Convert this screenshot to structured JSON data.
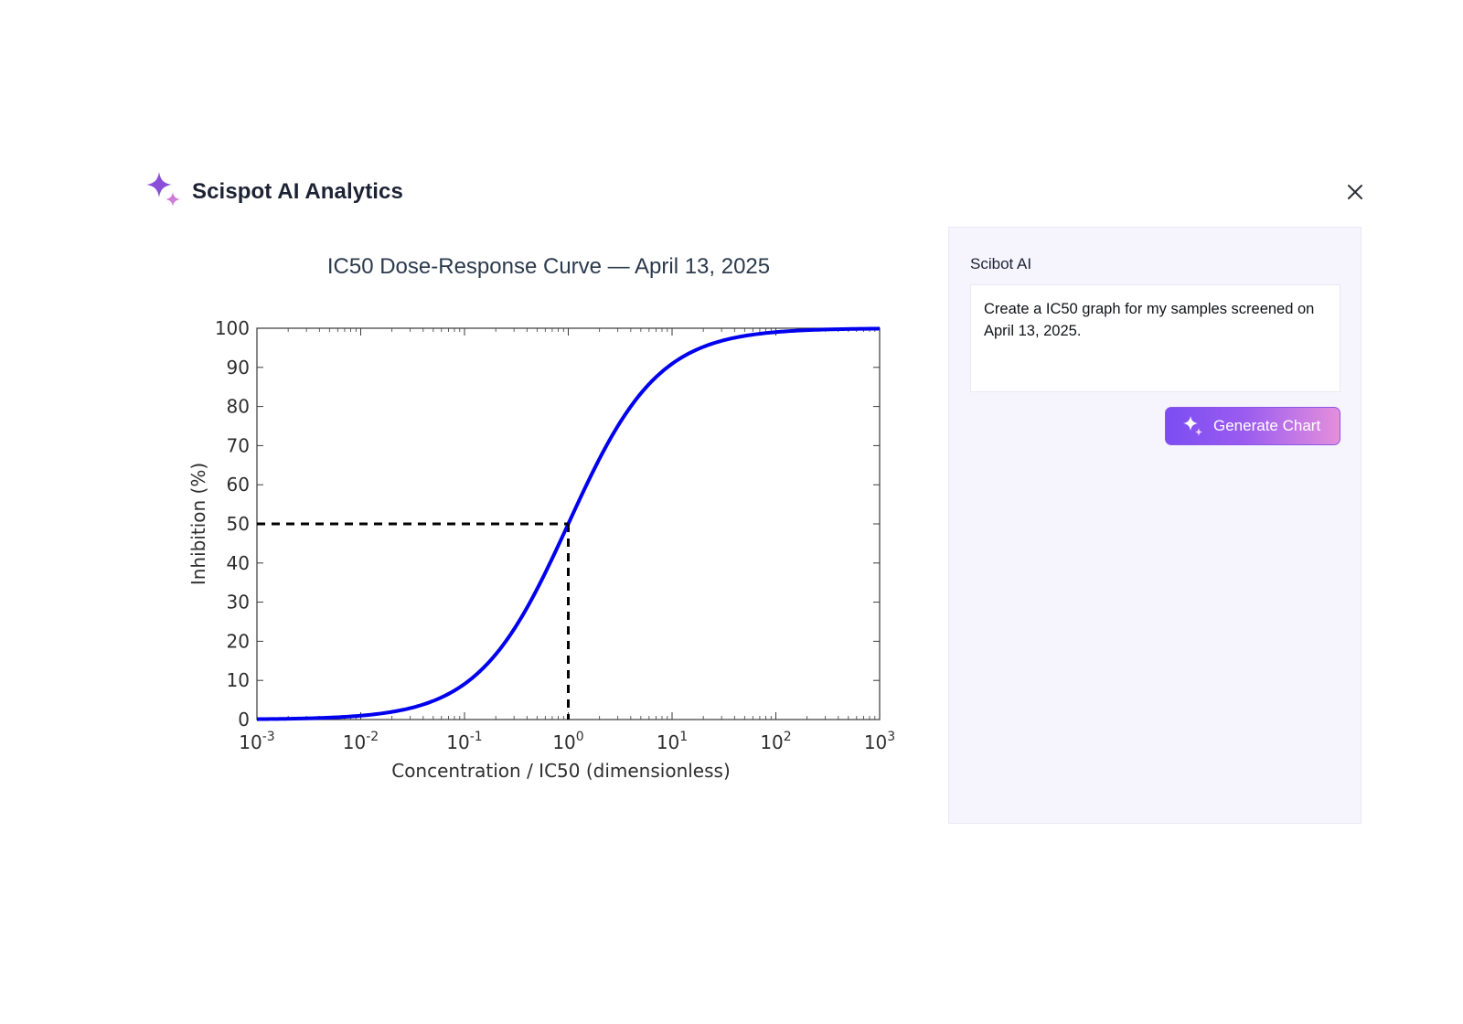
{
  "app": {
    "title": "Scispot AI Analytics",
    "logo_icon": "sparkle-icon",
    "close_icon": "close-icon"
  },
  "assistant": {
    "label": "Scibot AI",
    "prompt_text": "Create a IC50 graph for my samples screened on April 13, 2025.",
    "generate_button_label": "Generate Chart",
    "button_icon": "sparkle-icon"
  },
  "colors": {
    "accent_start": "#7c4df2",
    "accent_end": "#e48fdc",
    "curve": "#0000ee",
    "panel_bg": "#f6f4fd"
  },
  "chart_data": {
    "type": "line",
    "title": "IC50 Dose-Response Curve — April 13, 2025",
    "xlabel": "Concentration / IC50 (dimensionless)",
    "ylabel": "Inhibition (%)",
    "xscale": "log",
    "xlim": [
      0.001,
      1000
    ],
    "ylim": [
      0,
      100
    ],
    "x_ticks": [
      {
        "base": "10",
        "exp": "-3"
      },
      {
        "base": "10",
        "exp": "-2"
      },
      {
        "base": "10",
        "exp": "-1"
      },
      {
        "base": "10",
        "exp": "0"
      },
      {
        "base": "10",
        "exp": "1"
      },
      {
        "base": "10",
        "exp": "2"
      },
      {
        "base": "10",
        "exp": "3"
      }
    ],
    "y_ticks": [
      0,
      10,
      20,
      30,
      40,
      50,
      60,
      70,
      80,
      90,
      100
    ],
    "series": [
      {
        "name": "Inhibition",
        "model": "100 * x / (1 + x)",
        "x": [
          0.001,
          0.01,
          0.03,
          0.1,
          0.3,
          1,
          3,
          10,
          30,
          100,
          1000
        ],
        "y": [
          0.1,
          1.0,
          2.9,
          9.1,
          23.1,
          50.0,
          75.0,
          90.9,
          96.8,
          99.0,
          99.9
        ]
      }
    ],
    "ic50_marker": {
      "x": 1,
      "y": 50,
      "style": "dashed"
    },
    "grid": false
  }
}
